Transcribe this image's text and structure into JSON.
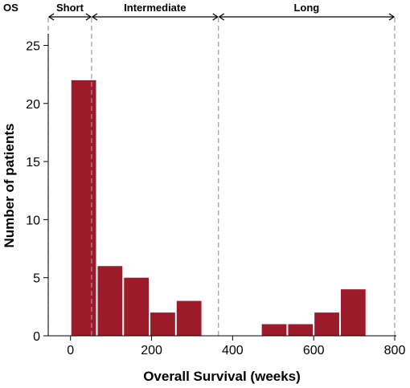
{
  "chart_data": {
    "type": "bar",
    "xlabel": "Overall Survival (weeks)",
    "ylabel": "Number of patients",
    "xlim": [
      -55,
      800
    ],
    "ylim": [
      0,
      26
    ],
    "x_ticks": [
      "0",
      "200",
      "400",
      "600",
      "800"
    ],
    "y_ticks": [
      "0",
      "5",
      "10",
      "15",
      "20",
      "25"
    ],
    "bar_color": "#9b1b2b",
    "bins": [
      {
        "start": 0,
        "end": 65,
        "count": 22
      },
      {
        "start": 65,
        "end": 130,
        "count": 6
      },
      {
        "start": 130,
        "end": 195,
        "count": 5
      },
      {
        "start": 195,
        "end": 260,
        "count": 2
      },
      {
        "start": 260,
        "end": 325,
        "count": 3
      },
      {
        "start": 470,
        "end": 535,
        "count": 1
      },
      {
        "start": 535,
        "end": 600,
        "count": 1
      },
      {
        "start": 600,
        "end": 665,
        "count": 2
      },
      {
        "start": 665,
        "end": 730,
        "count": 4
      }
    ],
    "thresholds": [
      -55,
      52,
      365,
      800
    ],
    "groups_label": "OS",
    "groups": [
      {
        "label": "Short",
        "from": -55,
        "to": 52
      },
      {
        "label": "Intermediate",
        "from": 52,
        "to": 365
      },
      {
        "label": "Long",
        "from": 365,
        "to": 800
      }
    ]
  }
}
